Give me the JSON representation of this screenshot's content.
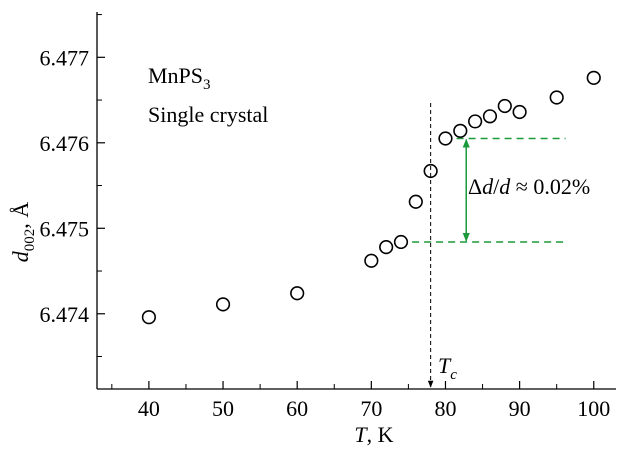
{
  "chart_data": {
    "type": "scatter",
    "title": "",
    "xlabel_var": "T",
    "xlabel_unit": ", K",
    "ylabel_var": "d",
    "ylabel_sub": "002",
    "ylabel_unit": ", Å",
    "xlim": [
      33,
      103
    ],
    "ylim": [
      6.47312,
      6.47753
    ],
    "x_ticks": [
      40,
      50,
      60,
      70,
      80,
      90,
      100
    ],
    "y_ticks": [
      6.474,
      6.475,
      6.476,
      6.477
    ],
    "x_tick_labels": [
      "40",
      "50",
      "60",
      "70",
      "80",
      "90",
      "100"
    ],
    "y_tick_labels": [
      "6.474",
      "6.475",
      "6.476",
      "6.477"
    ],
    "grid": false,
    "marker": "open-circle",
    "series": [
      {
        "x": [
          40,
          50,
          60,
          70,
          72,
          74,
          76,
          78,
          80,
          82,
          84,
          86,
          88,
          90,
          95,
          100
        ],
        "y": [
          6.47396,
          6.47411,
          6.47424,
          6.47462,
          6.47478,
          6.47484,
          6.47531,
          6.47567,
          6.47605,
          6.47614,
          6.47625,
          6.47631,
          6.47643,
          6.47636,
          6.47653,
          6.47676
        ]
      }
    ],
    "annotations": {
      "sample_line1_base": "MnPS",
      "sample_line1_sub": "3",
      "sample_line2": "Single crystal",
      "tc_var": "T",
      "tc_sub": "c",
      "tc_x": 78,
      "delta_label_prefix": "Δ",
      "delta_label_d1": "d",
      "delta_label_slash": "/",
      "delta_label_d2": "d",
      "delta_label_suffix": " ≈ 0.02%",
      "level_upper": 6.47605,
      "level_lower": 6.47484,
      "level_color": "#1a9a3a"
    }
  }
}
